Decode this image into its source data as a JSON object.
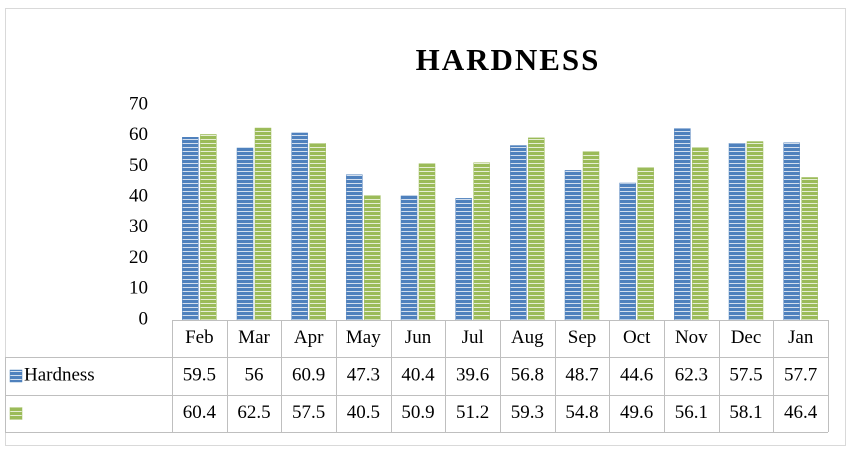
{
  "chart_data": {
    "type": "bar",
    "title": "HARDNESS",
    "categories": [
      "Feb",
      "Mar",
      "Apr",
      "May",
      "Jun",
      "Jul",
      "Aug",
      "Sep",
      "Oct",
      "Nov",
      "Dec",
      "Jan"
    ],
    "series": [
      {
        "name": "Hardness",
        "color": "#4f81bd",
        "values": [
          59.5,
          56,
          60.9,
          47.3,
          40.4,
          39.6,
          56.8,
          48.7,
          44.6,
          62.3,
          57.5,
          57.7
        ]
      },
      {
        "color": "#9bbb59",
        "values": [
          60.4,
          62.5,
          57.5,
          40.5,
          50.9,
          51.2,
          59.3,
          54.8,
          49.6,
          56.1,
          58.1,
          46.4
        ]
      }
    ],
    "ylim": [
      0,
      70
    ],
    "yticks": [
      0,
      10,
      20,
      30,
      40,
      50,
      60,
      70
    ],
    "grid": false,
    "data_table": true
  }
}
